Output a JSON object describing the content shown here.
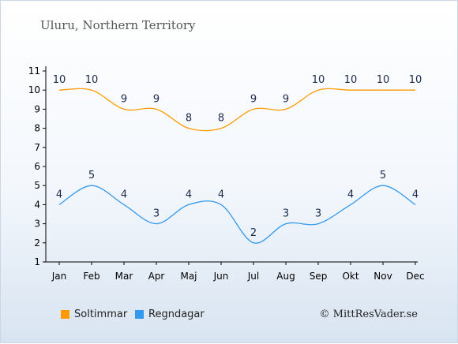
{
  "title": "Uluru, Northern Territory",
  "credit": "© MittResVader.se",
  "chart_data": {
    "type": "line",
    "categories": [
      "Jan",
      "Feb",
      "Mar",
      "Apr",
      "Maj",
      "Jun",
      "Jul",
      "Aug",
      "Sep",
      "Okt",
      "Nov",
      "Dec"
    ],
    "yticks": [
      1,
      2,
      3,
      4,
      5,
      6,
      7,
      8,
      9,
      10,
      11
    ],
    "ylim": [
      1,
      11
    ],
    "grid": false,
    "legend_position": "bottom",
    "series": [
      {
        "name": "Soltimmar",
        "color": "#ff9a00",
        "values": [
          10,
          10,
          9,
          9,
          8,
          8,
          9,
          9,
          10,
          10,
          10,
          10
        ]
      },
      {
        "name": "Regndagar",
        "color": "#3399ee",
        "values": [
          4,
          5,
          4,
          3,
          4,
          4,
          2,
          3,
          3,
          4,
          5,
          4
        ]
      }
    ]
  }
}
